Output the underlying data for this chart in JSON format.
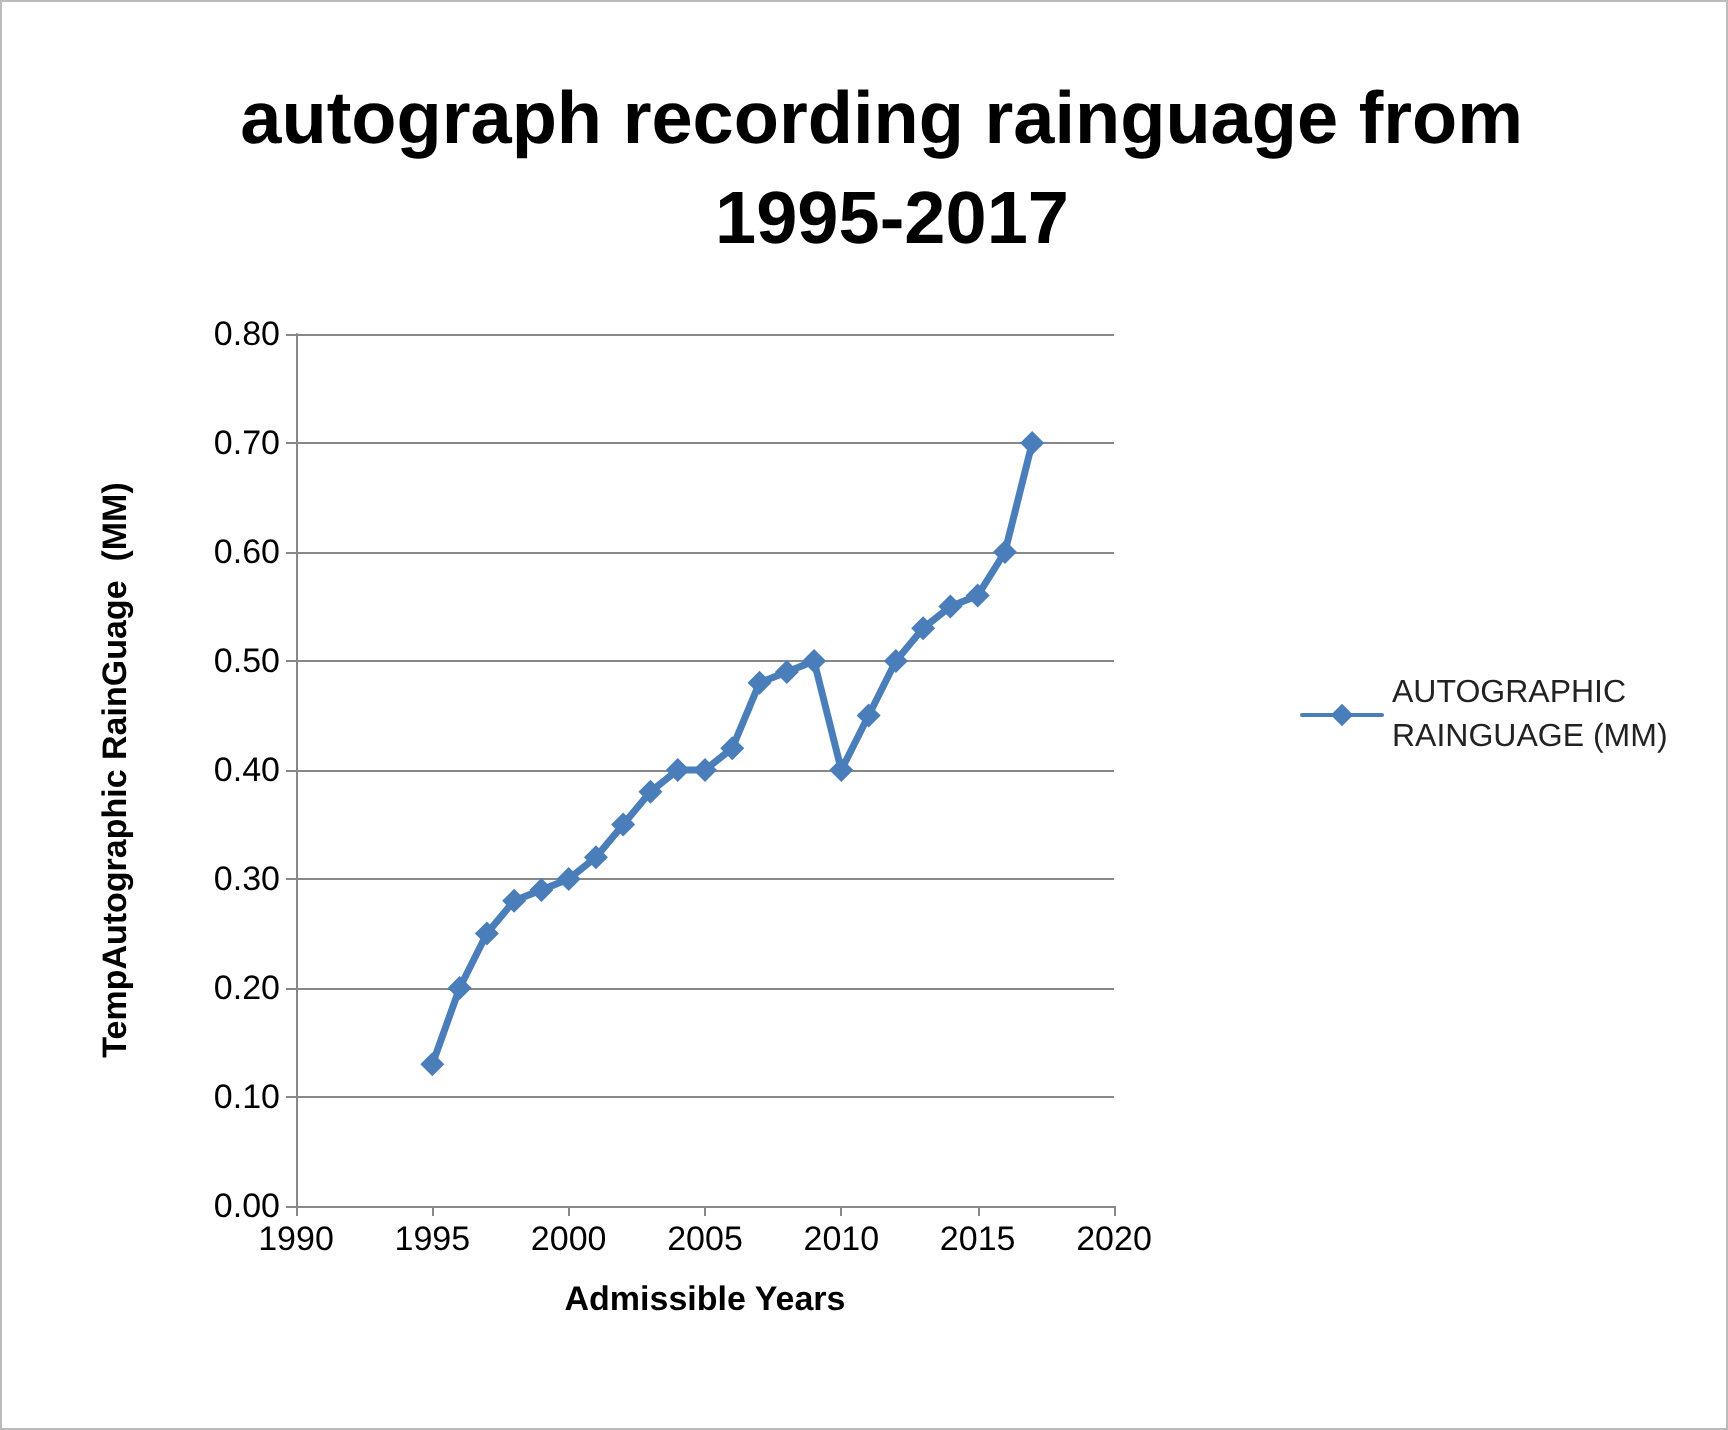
{
  "chart_data": {
    "type": "line",
    "title": "autograph recording rainguage from 1995-2017",
    "xlabel": "Admissible Years",
    "ylabel": "TempAutographic RainGuage  (MM)",
    "x": [
      1995,
      1996,
      1997,
      1998,
      1999,
      2000,
      2001,
      2002,
      2003,
      2004,
      2005,
      2006,
      2007,
      2008,
      2009,
      2010,
      2011,
      2012,
      2013,
      2014,
      2015,
      2016,
      2017
    ],
    "series": [
      {
        "name": "AUTOGRAPHIC RAINGUAGE (MM)",
        "color": "#4a7ebb",
        "values": [
          0.13,
          0.2,
          0.25,
          0.28,
          0.29,
          0.3,
          0.32,
          0.35,
          0.38,
          0.4,
          0.4,
          0.42,
          0.48,
          0.49,
          0.5,
          0.4,
          0.45,
          0.5,
          0.53,
          0.55,
          0.56,
          0.6,
          0.7
        ]
      }
    ],
    "xlim": [
      1990,
      2020
    ],
    "xticks": [
      1990,
      1995,
      2000,
      2005,
      2010,
      2015,
      2020
    ],
    "ylim": [
      0,
      0.8
    ],
    "yticks": [
      {
        "value": 0,
        "label": "0.00"
      },
      {
        "value": 0.1,
        "label": "0.10"
      },
      {
        "value": 0.2,
        "label": "0.20"
      },
      {
        "value": 0.3,
        "label": "0.30"
      },
      {
        "value": 0.4,
        "label": "0.40"
      },
      {
        "value": 0.5,
        "label": "0.50"
      },
      {
        "value": 0.6,
        "label": "0.60"
      },
      {
        "value": 0.7,
        "label": "0.70"
      },
      {
        "value": 0.8,
        "label": "0.80"
      }
    ],
    "grid": "y",
    "legend": "right",
    "marker": "diamond",
    "line_style": "solid"
  }
}
